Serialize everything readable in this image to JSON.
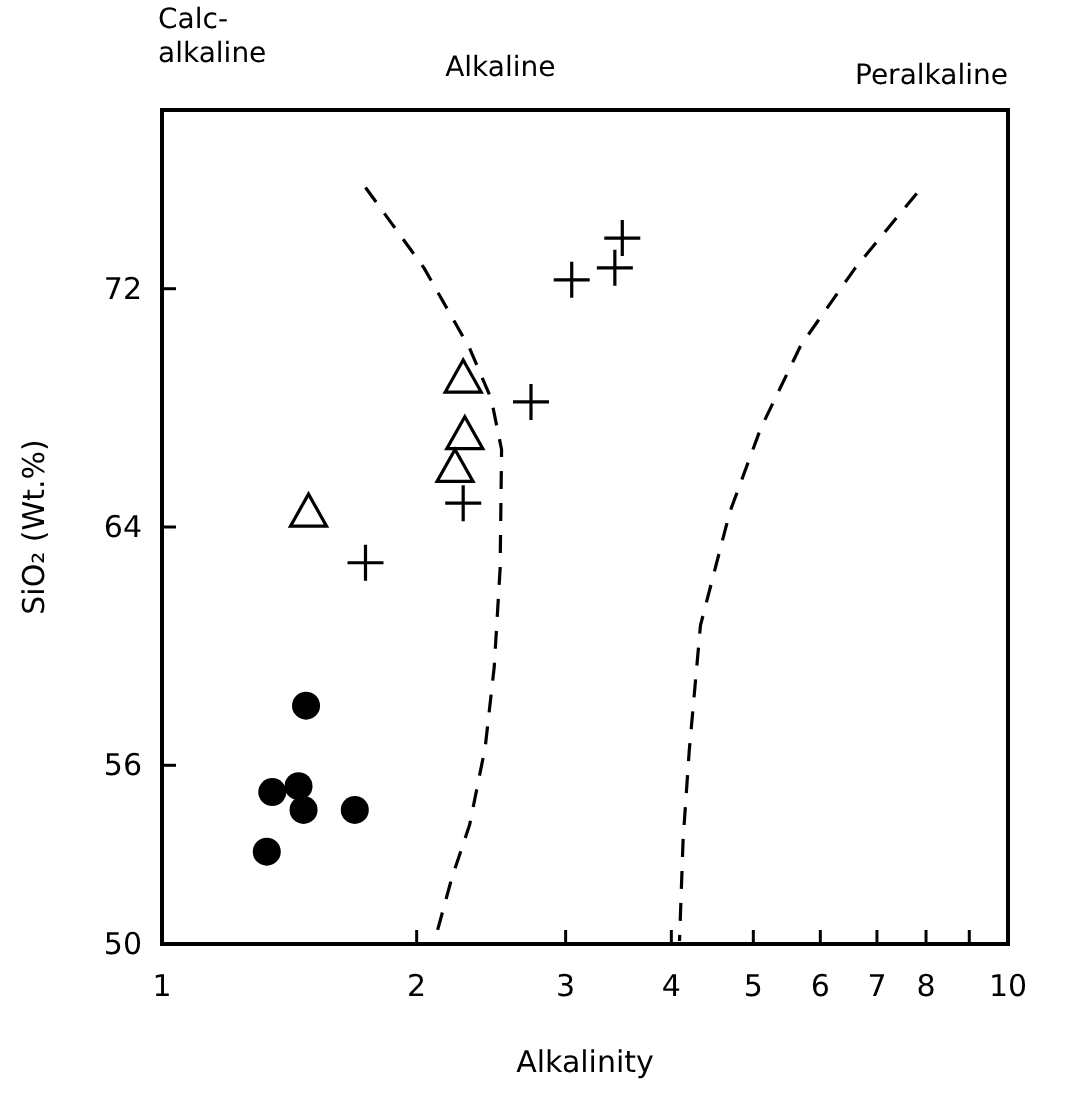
{
  "chart_data": {
    "type": "scatter",
    "xlabel": "Alkalinity",
    "ylabel": "SiO₂ (Wt.%)",
    "log": "x",
    "xlim": [
      1,
      10
    ],
    "ylim": [
      50,
      78
    ],
    "xticks": [
      1,
      2,
      3,
      4,
      5,
      6,
      7,
      8,
      {
        "value": 9,
        "label": null
      },
      10
    ],
    "yticks": [
      50,
      56,
      64,
      72
    ],
    "grid": false,
    "annotations": [
      "Calc-\nalkaline",
      "Alkaline",
      "Peralkaline"
    ],
    "series": [
      {
        "marker": "circle",
        "color": "#000000",
        "x": [
          1.48,
          1.35,
          1.45,
          1.47,
          1.69,
          1.33
        ],
        "values": [
          58.0,
          55.1,
          55.3,
          54.5,
          54.5,
          53.1
        ]
      },
      {
        "marker": "triangle",
        "color": "#000000",
        "x": [
          2.27,
          2.28,
          2.22,
          1.49
        ],
        "values": [
          69.0,
          67.1,
          66.0,
          64.5
        ]
      },
      {
        "marker": "cross",
        "color": "#000000",
        "x": [
          2.73,
          2.27,
          1.74,
          3.05,
          3.43,
          3.5
        ],
        "values": [
          68.2,
          64.8,
          62.8,
          72.3,
          72.7,
          73.7
        ]
      },
      {
        "type": "line",
        "marker": "none",
        "line_style": "dashed",
        "color": "#000000",
        "x": [
          1.74,
          2.04,
          2.31,
          2.45,
          2.52,
          2.51,
          2.47,
          2.41,
          2.31,
          2.2,
          2.1
        ],
        "values": [
          75.4,
          72.7,
          70.0,
          68.3,
          66.6,
          62.6,
          59.3,
          56.6,
          54.0,
          52.2,
          50.1
        ]
      },
      {
        "type": "line",
        "marker": "none",
        "line_style": "dashed",
        "color": "#000000",
        "x": [
          7.8,
          6.6,
          5.69,
          5.1,
          4.69,
          4.33,
          4.2,
          4.13,
          4.09
        ],
        "values": [
          75.2,
          72.7,
          70.1,
          67.3,
          64.5,
          60.7,
          56.5,
          53.5,
          50.1
        ]
      }
    ]
  }
}
